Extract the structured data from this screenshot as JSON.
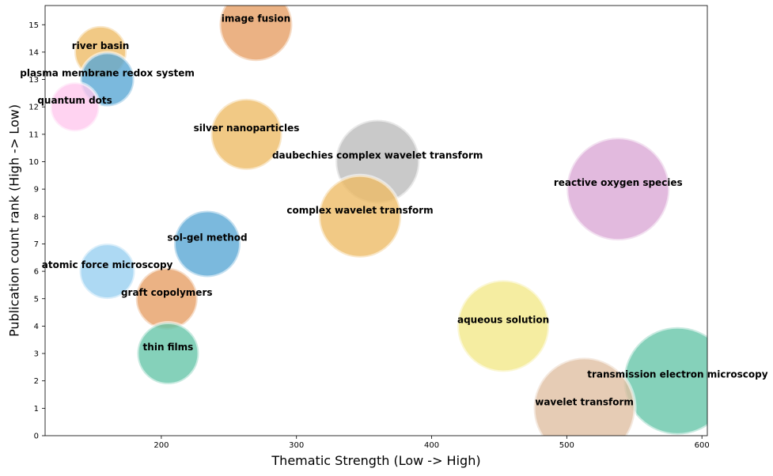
{
  "chart_data": {
    "type": "scatter",
    "title": "",
    "xlabel": "Thematic Strength (Low -> High)",
    "ylabel": "Publication count rank (High -> Low)",
    "xlim": [
      114,
      604
    ],
    "ylim": [
      0,
      15.7
    ],
    "xticks": [
      200,
      300,
      400,
      500,
      600
    ],
    "yticks": [
      0,
      1,
      2,
      3,
      4,
      5,
      6,
      7,
      8,
      9,
      10,
      11,
      12,
      13,
      14,
      15
    ],
    "grid": false,
    "points": [
      {
        "label": "image fusion",
        "x": 270,
        "y": 15,
        "size": 46,
        "color": "#e69f65"
      },
      {
        "label": "river basin",
        "x": 155,
        "y": 14,
        "size": 33,
        "color": "#eebb66"
      },
      {
        "label": "plasma membrane redox system",
        "x": 160,
        "y": 13,
        "size": 34,
        "color": "#5aa7d5"
      },
      {
        "label": "quantum dots",
        "x": 136,
        "y": 12,
        "size": 31,
        "color": "#ffc8ee"
      },
      {
        "label": "silver nanoparticles",
        "x": 263,
        "y": 11,
        "size": 45,
        "color": "#eebb66"
      },
      {
        "label": "daubechies complex wavelet transform",
        "x": 360,
        "y": 10,
        "size": 53,
        "color": "#bbbbbb"
      },
      {
        "label": "reactive oxygen species",
        "x": 538,
        "y": 9,
        "size": 65,
        "color": "#dba9d6"
      },
      {
        "label": "complex wavelet transform",
        "x": 347,
        "y": 8,
        "size": 52,
        "color": "#eebb66"
      },
      {
        "label": "sol-gel method",
        "x": 234,
        "y": 7,
        "size": 42,
        "color": "#5aa7d5"
      },
      {
        "label": "atomic force microscopy",
        "x": 160,
        "y": 6,
        "size": 35,
        "color": "#99cff0"
      },
      {
        "label": "graft copolymers",
        "x": 204,
        "y": 5,
        "size": 39,
        "color": "#e69f65"
      },
      {
        "label": "aqueous solution",
        "x": 453,
        "y": 4,
        "size": 58,
        "color": "#f3e98a"
      },
      {
        "label": "thin films",
        "x": 205,
        "y": 3,
        "size": 39,
        "color": "#66c6a9"
      },
      {
        "label": "transmission electron microscopy",
        "x": 582,
        "y": 2,
        "size": 68,
        "color": "#66c6a9"
      },
      {
        "label": "wavelet transform",
        "x": 513,
        "y": 1,
        "size": 64,
        "color": "#e0bfa2"
      }
    ]
  }
}
